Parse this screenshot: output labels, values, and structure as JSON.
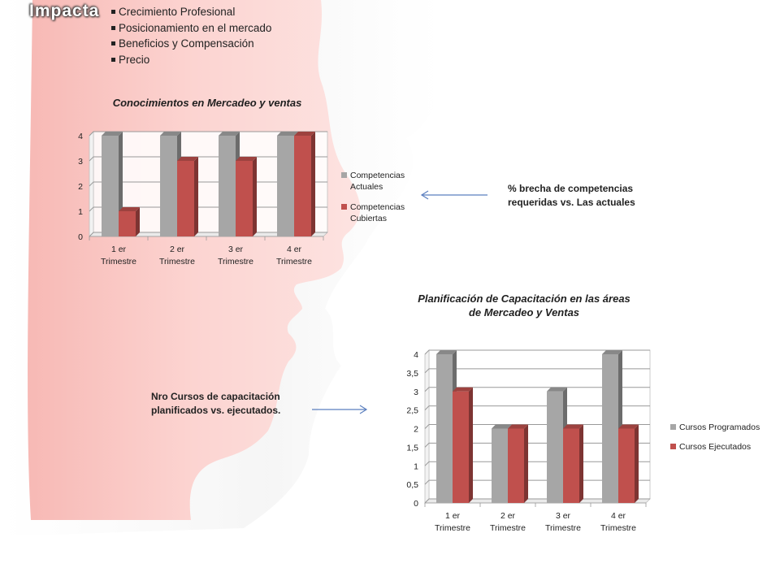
{
  "header": {
    "title": "Impacta",
    "bullets": [
      "Crecimiento Profesional",
      "Posicionamiento en el mercado",
      "Beneficios y Compensación",
      "Precio"
    ]
  },
  "annotations": {
    "top": [
      "% brecha de competencias",
      "requeridas vs. Las actuales"
    ],
    "bottom": [
      "Nro Cursos de capacitación",
      "planificados vs. ejecutados."
    ]
  },
  "colors": {
    "series_gray": "#a6a6a6",
    "series_red": "#c0504d",
    "arrow": "#5b7fbf",
    "background_silhouette": "#f9c7c4"
  },
  "chart_data": [
    {
      "type": "bar",
      "title": "Conocimientos en Mercadeo y ventas",
      "categories": [
        [
          "1 er",
          "Trimestre"
        ],
        [
          "2 er",
          "Trimestre"
        ],
        [
          "3 er",
          "Trimestre"
        ],
        [
          "4 er",
          "Trimestre"
        ]
      ],
      "series": [
        {
          "name": [
            "Competencias",
            "Actuales"
          ],
          "values": [
            4,
            4,
            4,
            4
          ]
        },
        {
          "name": [
            "Competencias",
            "Cubiertas"
          ],
          "values": [
            1,
            3,
            3,
            4
          ]
        }
      ],
      "yticks": [
        "0",
        "1",
        "2",
        "3",
        "4"
      ],
      "ylim": [
        0,
        4
      ],
      "grid": true,
      "legend": "right"
    },
    {
      "type": "bar",
      "title": [
        "Planificación de Capacitación en las áreas",
        "de Mercadeo y Ventas"
      ],
      "categories": [
        [
          "1 er",
          "Trimestre"
        ],
        [
          "2 er",
          "Trimestre"
        ],
        [
          "3 er",
          "Trimestre"
        ],
        [
          "4 er",
          "Trimestre"
        ]
      ],
      "series": [
        {
          "name": [
            "Cursos Programados"
          ],
          "values": [
            4,
            2,
            3,
            4
          ]
        },
        {
          "name": [
            "Cursos Ejecutados"
          ],
          "values": [
            3,
            2,
            2,
            2
          ]
        }
      ],
      "yticks": [
        "0",
        "0,5",
        "1",
        "1,5",
        "2",
        "2,5",
        "3",
        "3,5",
        "4"
      ],
      "ylim": [
        0,
        4
      ],
      "grid": true,
      "legend": "right"
    }
  ]
}
